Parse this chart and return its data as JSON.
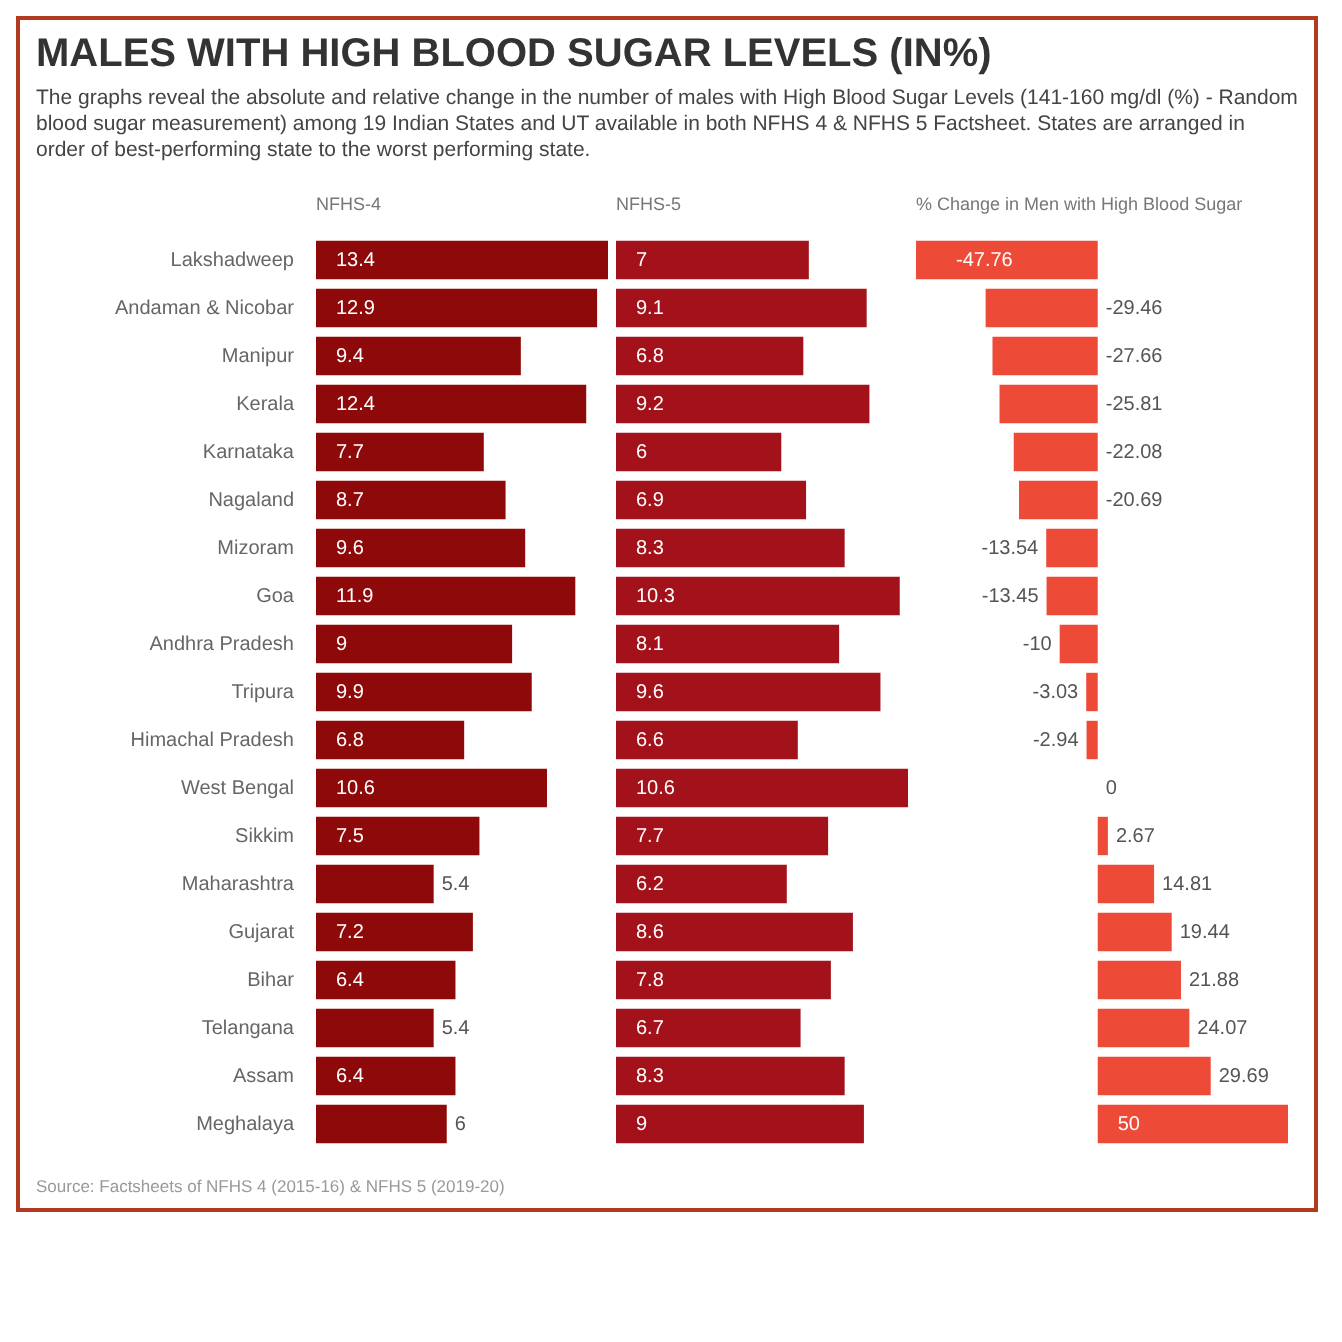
{
  "chart_data": [
    {
      "type": "bar",
      "orientation": "horizontal",
      "title": "MALES WITH HIGH BLOOD SUGAR LEVELS (IN%)",
      "subtitle": "The graphs reveal the absolute and relative change in the number of males with High Blood Sugar Levels (141-160 mg/dl (%) - Random blood sugar measurement) among 19 Indian States and UT available in both NFHS 4 & NFHS 5 Factsheet. States are arranged in order of best-performing state to the worst performing state.",
      "xlabel": "NFHS-4",
      "annotations": [
        "Source: Factsheets of NFHS 4 (2015-16) & NFHS 5 (2019-20)"
      ],
      "categories": [
        "Lakshadweep",
        "Andaman & Nicobar",
        "Manipur",
        "Kerala",
        "Karnataka",
        "Nagaland",
        "Mizoram",
        "Goa",
        "Andhra Pradesh",
        "Tripura",
        "Himachal Pradesh",
        "West Bengal",
        "Sikkim",
        "Maharashtra",
        "Gujarat",
        "Bihar",
        "Telangana",
        "Assam",
        "Meghalaya"
      ],
      "values": [
        13.4,
        12.9,
        9.4,
        12.4,
        7.7,
        8.7,
        9.6,
        11.9,
        9,
        9.9,
        6.8,
        10.6,
        7.5,
        5.4,
        7.2,
        6.4,
        5.4,
        6.4,
        6
      ],
      "color": "#8e0a0a",
      "data_labels": true,
      "tick_labels": "y"
    },
    {
      "type": "bar",
      "orientation": "horizontal",
      "xlabel": "NFHS-5",
      "categories": [
        null,
        null,
        null,
        null,
        null,
        null,
        null,
        null,
        null,
        null,
        null,
        null,
        null,
        null,
        null,
        null,
        null,
        null,
        null
      ],
      "values": [
        7,
        9.1,
        6.8,
        9.2,
        6,
        6.9,
        8.3,
        10.3,
        8.1,
        9.6,
        6.6,
        10.6,
        7.7,
        6.2,
        8.6,
        7.8,
        6.7,
        8.3,
        9
      ],
      "color": "#a3111a",
      "data_labels": true,
      "tick_labels": false
    },
    {
      "type": "bar",
      "orientation": "horizontal",
      "xlabel": "% Change in Men with High Blood Sugar",
      "categories": [
        null,
        null,
        null,
        null,
        null,
        null,
        null,
        null,
        null,
        null,
        null,
        null,
        null,
        null,
        null,
        null,
        null,
        null,
        null
      ],
      "values": [
        -47.76,
        -29.46,
        -27.66,
        -25.81,
        -22.08,
        -20.69,
        -13.54,
        -13.45,
        -10,
        -3.03,
        -2.94,
        0,
        2.67,
        14.81,
        19.44,
        21.88,
        24.07,
        29.69,
        50
      ],
      "color": "#ee4a38",
      "data_labels": true,
      "tick_labels": false
    }
  ]
}
